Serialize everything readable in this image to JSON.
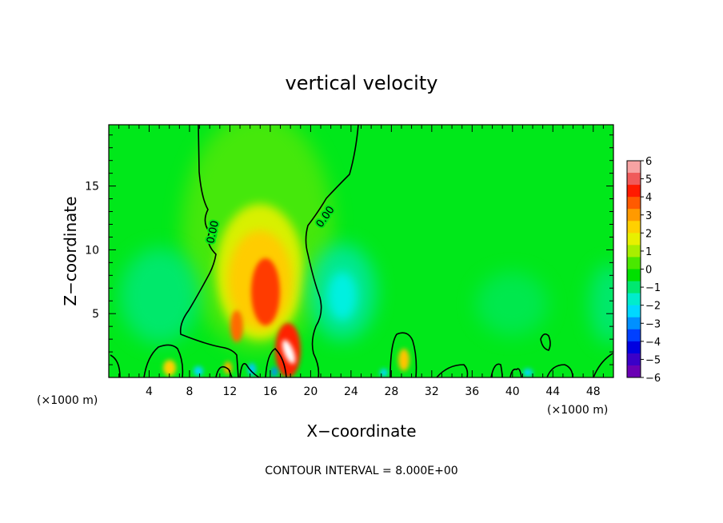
{
  "chart_data": {
    "type": "heatmap",
    "title": "vertical velocity",
    "xlabel": "X−coordinate",
    "ylabel": "Z−coordinate",
    "x_unit_left": "(×1000 m)",
    "x_unit_right": "(×1000 m)",
    "footer": "CONTOUR INTERVAL = 8.000E+00",
    "xlim": [
      0,
      50
    ],
    "ylim": [
      0,
      19.8
    ],
    "x_ticks": [
      4,
      8,
      12,
      16,
      20,
      24,
      28,
      32,
      36,
      40,
      44,
      48
    ],
    "x_tick_labels": [
      "4",
      "8",
      "12",
      "16",
      "20",
      "24",
      "28",
      "32",
      "36",
      "40",
      "44",
      "48"
    ],
    "y_ticks": [
      5,
      10,
      15
    ],
    "y_tick_labels": [
      "5",
      "10",
      "15"
    ],
    "contour_label": "0.00",
    "colorbar": {
      "labels": [
        "6",
        "5",
        "4",
        "3",
        "2",
        "1",
        "0",
        "−1",
        "−2",
        "−3",
        "−4",
        "−5",
        "−6"
      ],
      "colors": [
        "#f7a3a3",
        "#f05a5a",
        "#ff1a00",
        "#ff5a00",
        "#ff9a00",
        "#ffd000",
        "#e8f000",
        "#a8ee00",
        "#4ae800",
        "#00e000",
        "#00e870",
        "#00eccc",
        "#00d8ff",
        "#0090ff",
        "#0040ff",
        "#0000e0",
        "#3a00c8",
        "#6a00b4"
      ]
    },
    "background_color": "#00e81a",
    "features": [
      {
        "kind": "updraft",
        "x": 15.5,
        "z": 6.5,
        "value": 4.5
      },
      {
        "kind": "updraft",
        "x": 17.8,
        "z": 1.5,
        "value": 6
      },
      {
        "kind": "updraft",
        "x": 12.8,
        "z": 4.0,
        "value": 3
      },
      {
        "kind": "downdraft",
        "x": 23,
        "z": 6.5,
        "value": -2
      },
      {
        "kind": "downdraft",
        "x": 7,
        "z": 6,
        "value": -1.5
      },
      {
        "kind": "downdraft",
        "x": 49,
        "z": 6,
        "value": -1.5
      }
    ]
  }
}
